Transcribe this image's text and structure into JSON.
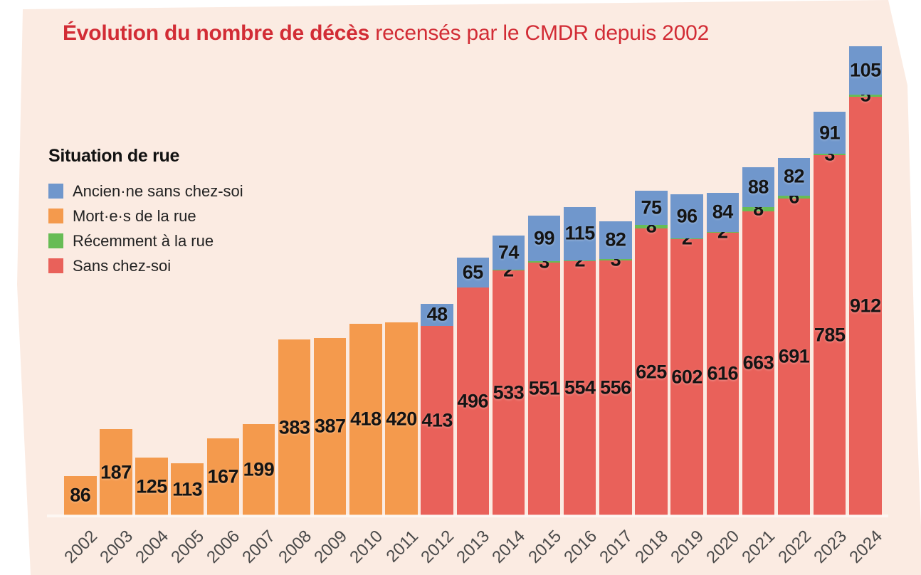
{
  "page": {
    "background_color": "#ffffff",
    "panel_color": "#fbebe2"
  },
  "title": {
    "bold": "Évolution du nombre de décès",
    "regular": " recensés par le CMDR depuis 2002",
    "color": "#d22c35"
  },
  "legend": {
    "heading": "Situation de rue",
    "items": [
      {
        "key": "ancien",
        "label": "Ancien·ne sans chez-soi",
        "color": "#7097cc"
      },
      {
        "key": "mort",
        "label": "Mort·e·s de la rue",
        "color": "#f49a4d"
      },
      {
        "key": "recent",
        "label": "Récemment à la rue",
        "color": "#67bc55"
      },
      {
        "key": "sans",
        "label": "Sans chez-soi",
        "color": "#e9615a"
      }
    ]
  },
  "chart_data": {
    "type": "bar",
    "stacked": true,
    "title": "Évolution du nombre de décès recensés par le CMDR depuis 2002",
    "categories": [
      "2002",
      "2003",
      "2004",
      "2005",
      "2006",
      "2007",
      "2008",
      "2009",
      "2010",
      "2011",
      "2012",
      "2013",
      "2014",
      "2015",
      "2016",
      "2017",
      "2018",
      "2019",
      "2020",
      "2021",
      "2022",
      "2023",
      "2024"
    ],
    "series": [
      {
        "key": "mort",
        "name": "Mort·e·s de la rue",
        "color": "#f49a4d",
        "values": [
          86,
          187,
          125,
          113,
          167,
          199,
          383,
          387,
          418,
          420,
          0,
          0,
          0,
          0,
          0,
          0,
          0,
          0,
          0,
          0,
          0,
          0,
          0
        ]
      },
      {
        "key": "sans",
        "name": "Sans chez-soi",
        "color": "#e9615a",
        "values": [
          0,
          0,
          0,
          0,
          0,
          0,
          0,
          0,
          0,
          0,
          413,
          496,
          533,
          551,
          554,
          556,
          625,
          602,
          616,
          663,
          691,
          785,
          912
        ]
      },
      {
        "key": "recent",
        "name": "Récemment à la rue",
        "color": "#67bc55",
        "values": [
          0,
          0,
          0,
          0,
          0,
          0,
          0,
          0,
          0,
          0,
          0,
          0,
          2,
          3,
          2,
          3,
          8,
          2,
          2,
          8,
          6,
          3,
          5
        ]
      },
      {
        "key": "ancien",
        "name": "Ancien·ne sans chez-soi",
        "color": "#7097cc",
        "values": [
          0,
          0,
          0,
          0,
          0,
          0,
          0,
          0,
          0,
          0,
          48,
          65,
          74,
          99,
          115,
          82,
          75,
          96,
          84,
          88,
          82,
          91,
          105
        ]
      }
    ],
    "ylim": [
      0,
      1022
    ],
    "grid": false,
    "legend_position": "top-left",
    "x_tick_rotation": -45,
    "value_labels": "inside-segment-center"
  }
}
